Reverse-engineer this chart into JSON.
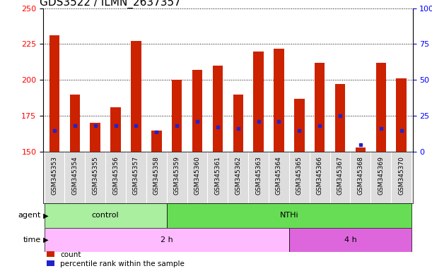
{
  "title": "GDS3522 / ILMN_2637357",
  "samples": [
    "GSM345353",
    "GSM345354",
    "GSM345355",
    "GSM345356",
    "GSM345357",
    "GSM345358",
    "GSM345359",
    "GSM345360",
    "GSM345361",
    "GSM345362",
    "GSM345363",
    "GSM345364",
    "GSM345365",
    "GSM345366",
    "GSM345367",
    "GSM345368",
    "GSM345369",
    "GSM345370"
  ],
  "counts": [
    231,
    190,
    170,
    181,
    227,
    165,
    200,
    207,
    210,
    190,
    220,
    222,
    187,
    212,
    197,
    153,
    212,
    201
  ],
  "percentile_ranks": [
    15,
    18,
    18,
    18,
    18,
    14,
    18,
    21,
    17,
    16,
    21,
    21,
    15,
    18,
    25,
    5,
    16,
    15
  ],
  "bar_color": "#cc2200",
  "blue_color": "#2222cc",
  "base": 150,
  "ymin": 150,
  "ymax": 250,
  "yticks_left": [
    150,
    175,
    200,
    225,
    250
  ],
  "yticks_right": [
    0,
    25,
    50,
    75,
    100
  ],
  "agent_groups": [
    {
      "label": "control",
      "start": 0,
      "end": 5,
      "color": "#aaeea0"
    },
    {
      "label": "NTHi",
      "start": 6,
      "end": 17,
      "color": "#66dd55"
    }
  ],
  "time_groups": [
    {
      "label": "2 h",
      "start": 0,
      "end": 11,
      "color": "#ffbbff"
    },
    {
      "label": "4 h",
      "start": 12,
      "end": 17,
      "color": "#dd66dd"
    }
  ],
  "agent_label": "agent",
  "time_label": "time",
  "legend_count": "count",
  "legend_percentile": "percentile rank within the sample",
  "title_fontsize": 11,
  "tick_label_fontsize": 6.5,
  "bar_width": 0.5,
  "xticklabel_bg": "#dddddd"
}
